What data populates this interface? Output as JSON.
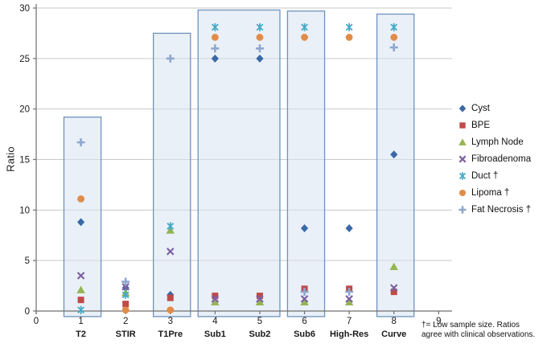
{
  "figure": {
    "ylabel": "Ratio",
    "footnote_line1": "†= Low sample size. Ratios",
    "footnote_line2": "agree with clinical observations."
  },
  "chart_data": {
    "type": "scatter",
    "title": "",
    "xlabel": "",
    "ylabel": "Ratio",
    "xlim": [
      0,
      9.3
    ],
    "ylim": [
      0,
      30
    ],
    "xticks": [
      0,
      1,
      2,
      3,
      4,
      5,
      6,
      7,
      8,
      9
    ],
    "yticks": [
      0,
      5,
      10,
      15,
      20,
      25,
      30
    ],
    "grid": true,
    "legend_position": "right",
    "categories": [
      "T2",
      "STIR",
      "T1Pre",
      "Sub1",
      "Sub2",
      "Sub6",
      "High-Res",
      "Curve"
    ],
    "category_x": [
      1,
      2,
      3,
      4,
      5,
      6,
      7,
      8
    ],
    "series": [
      {
        "name": "Cyst",
        "marker": "diamond",
        "color": "#3A69A8",
        "values": [
          8.8,
          2.3,
          1.6,
          25.0,
          25.0,
          8.2,
          8.2,
          15.5
        ]
      },
      {
        "name": "BPE",
        "marker": "square",
        "color": "#BE4B48",
        "values": [
          1.1,
          0.7,
          1.3,
          1.5,
          1.5,
          2.2,
          2.2,
          1.9
        ]
      },
      {
        "name": "Lymph Node",
        "marker": "triangle",
        "color": "#94B554",
        "values": [
          2.1,
          1.8,
          8.0,
          0.9,
          0.9,
          0.9,
          0.9,
          4.4
        ]
      },
      {
        "name": "Fibroadenoma",
        "marker": "x",
        "color": "#7C61A3",
        "values": [
          3.5,
          2.4,
          5.9,
          1.2,
          1.2,
          1.2,
          1.2,
          2.3
        ]
      },
      {
        "name": "Duct †",
        "marker": "x-line",
        "color": "#45AAC6",
        "values": [
          0.1,
          1.6,
          8.4,
          28.1,
          28.1,
          28.1,
          28.1,
          28.1
        ]
      },
      {
        "name": "Lipoma †",
        "marker": "circle",
        "color": "#E08C49",
        "values": [
          11.1,
          0.1,
          0.1,
          27.1,
          27.1,
          27.1,
          27.1,
          27.1
        ]
      },
      {
        "name": "Fat Necrosis †",
        "marker": "plus",
        "color": "#8FA7CE",
        "values": [
          16.7,
          2.9,
          25.0,
          26.0,
          26.0,
          1.9,
          1.9,
          26.1
        ]
      }
    ],
    "highlight_boxes": [
      {
        "category": "T2",
        "x0": 0.62,
        "x1": 1.45,
        "y0": -0.55,
        "y1": 19.2
      },
      {
        "category": "T1Pre",
        "x0": 2.62,
        "x1": 3.45,
        "y0": -0.55,
        "y1": 27.5
      },
      {
        "category": "Sub1-Sub2",
        "x0": 3.62,
        "x1": 5.45,
        "y0": -0.55,
        "y1": 29.8
      },
      {
        "category": "Sub6",
        "x0": 5.62,
        "x1": 6.45,
        "y0": -0.55,
        "y1": 29.7
      },
      {
        "category": "Curve",
        "x0": 7.62,
        "x1": 8.45,
        "y0": -0.55,
        "y1": 29.4
      }
    ]
  },
  "colors": {
    "box_fill": "#D9E3F1",
    "box_border": "#6E93BE",
    "gridline": "#C9C9C9",
    "axis": "#6F6F6F",
    "text": "#1A1A1A"
  }
}
